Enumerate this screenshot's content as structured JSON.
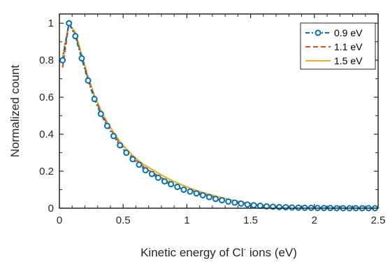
{
  "chart_data": {
    "type": "line",
    "xlabel_main": "Kinetic energy of Cl",
    "xlabel_sup": "-",
    "xlabel_tail": " ions (eV)",
    "ylabel": "Normalized count",
    "xlim": [
      0,
      2.5
    ],
    "ylim": [
      0,
      1.05
    ],
    "xticks": [
      0,
      0.5,
      1,
      1.5,
      2,
      2.5
    ],
    "xtick_labels": [
      "0",
      "0.5",
      "1",
      "1.5",
      "2",
      "2.5"
    ],
    "yticks": [
      0,
      0.2,
      0.4,
      0.6,
      0.8,
      1
    ],
    "ytick_labels": [
      "0",
      "0.2",
      "0.4",
      "0.6",
      "0.8",
      "1"
    ],
    "grid": false,
    "legend_position": "top-right",
    "series": [
      {
        "name": "0.9 eV",
        "color": "#0072BD",
        "style": "dash-dot-circle",
        "x": [
          0.025,
          0.075,
          0.125,
          0.175,
          0.225,
          0.275,
          0.325,
          0.375,
          0.425,
          0.475,
          0.525,
          0.575,
          0.625,
          0.675,
          0.725,
          0.775,
          0.825,
          0.875,
          0.925,
          0.975,
          1.025,
          1.075,
          1.125,
          1.175,
          1.225,
          1.275,
          1.325,
          1.375,
          1.425,
          1.475,
          1.525,
          1.575,
          1.625,
          1.675,
          1.725,
          1.775,
          1.825,
          1.875,
          1.925,
          1.975,
          2.025,
          2.075,
          2.125,
          2.175,
          2.225,
          2.275,
          2.325,
          2.375,
          2.425,
          2.475
        ],
        "y": [
          0.8,
          1.0,
          0.93,
          0.81,
          0.69,
          0.59,
          0.51,
          0.445,
          0.39,
          0.34,
          0.3,
          0.265,
          0.235,
          0.205,
          0.185,
          0.165,
          0.145,
          0.13,
          0.115,
          0.1,
          0.09,
          0.08,
          0.07,
          0.06,
          0.05,
          0.043,
          0.036,
          0.03,
          0.025,
          0.02,
          0.016,
          0.013,
          0.01,
          0.008,
          0.006,
          0.005,
          0.004,
          0.003,
          0.002,
          0.002,
          0.001,
          0.001,
          0.001,
          0.0,
          0.0,
          0.0,
          0.0,
          0.0,
          0.0,
          0.0
        ]
      },
      {
        "name": "1.1 eV",
        "color": "#D95319",
        "style": "dashed",
        "x": [
          0.025,
          0.075,
          0.125,
          0.175,
          0.225,
          0.275,
          0.325,
          0.375,
          0.425,
          0.475,
          0.525,
          0.575,
          0.625,
          0.675,
          0.725,
          0.775,
          0.825,
          0.875,
          0.925,
          0.975,
          1.025,
          1.075,
          1.125,
          1.175,
          1.225,
          1.275,
          1.325,
          1.375,
          1.425,
          1.475,
          1.525,
          1.575,
          1.625,
          1.675,
          1.725,
          1.775,
          1.825,
          1.875,
          1.925,
          1.975,
          2.025,
          2.075,
          2.125,
          2.175,
          2.225,
          2.275,
          2.325,
          2.375,
          2.425,
          2.475
        ],
        "y": [
          0.76,
          1.0,
          0.94,
          0.82,
          0.7,
          0.6,
          0.52,
          0.455,
          0.4,
          0.35,
          0.31,
          0.275,
          0.245,
          0.215,
          0.195,
          0.175,
          0.155,
          0.14,
          0.125,
          0.11,
          0.098,
          0.087,
          0.077,
          0.067,
          0.058,
          0.05,
          0.042,
          0.035,
          0.029,
          0.024,
          0.019,
          0.015,
          0.012,
          0.009,
          0.007,
          0.005,
          0.004,
          0.003,
          0.002,
          0.002,
          0.001,
          0.001,
          0.001,
          0.0,
          0.0,
          0.0,
          0.0,
          0.0,
          0.0,
          0.0
        ]
      },
      {
        "name": "1.5 eV",
        "color": "#EDB120",
        "style": "solid",
        "x": [
          0.025,
          0.075,
          0.125,
          0.175,
          0.225,
          0.275,
          0.325,
          0.375,
          0.425,
          0.475,
          0.525,
          0.575,
          0.625,
          0.675,
          0.725,
          0.775,
          0.825,
          0.875,
          0.925,
          0.975,
          1.025,
          1.075,
          1.125,
          1.175,
          1.225,
          1.275,
          1.325,
          1.375,
          1.425,
          1.475,
          1.525,
          1.575,
          1.625,
          1.675,
          1.725,
          1.775,
          1.825,
          1.875,
          1.925,
          1.975,
          2.025,
          2.075,
          2.125,
          2.175,
          2.225,
          2.275,
          2.325,
          2.375,
          2.425,
          2.475
        ],
        "y": [
          0.82,
          1.0,
          0.95,
          0.83,
          0.71,
          0.61,
          0.53,
          0.465,
          0.41,
          0.36,
          0.32,
          0.285,
          0.255,
          0.23,
          0.21,
          0.19,
          0.17,
          0.152,
          0.137,
          0.122,
          0.108,
          0.096,
          0.085,
          0.075,
          0.066,
          0.057,
          0.049,
          0.041,
          0.034,
          0.028,
          0.023,
          0.019,
          0.015,
          0.012,
          0.009,
          0.007,
          0.005,
          0.004,
          0.003,
          0.002,
          0.002,
          0.001,
          0.001,
          0.001,
          0.0,
          0.0,
          0.0,
          0.0,
          0.0,
          0.0
        ]
      }
    ]
  }
}
